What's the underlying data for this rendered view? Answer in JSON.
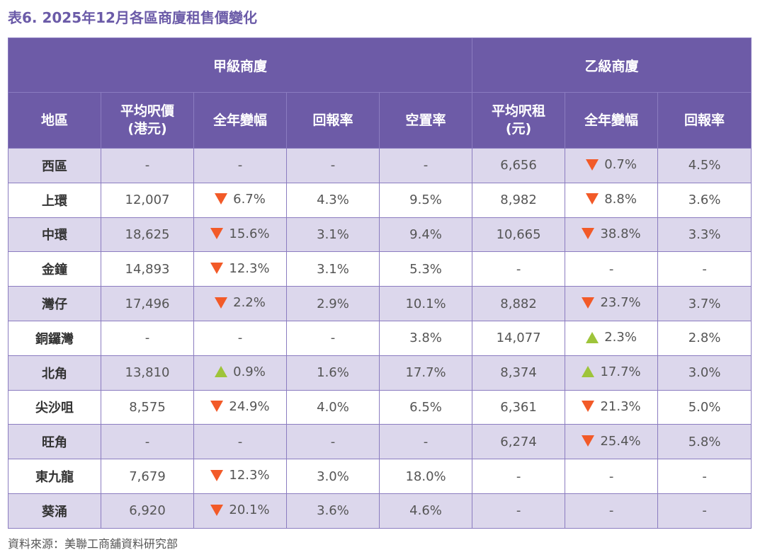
{
  "title": "表6. 2025年12月各區商廈租售價變化",
  "groups": {
    "grade_a": "甲級商廈",
    "grade_b": "乙級商廈"
  },
  "columns": [
    {
      "l1": "地區",
      "l2": ""
    },
    {
      "l1": "平均呎價",
      "l2": "(港元)"
    },
    {
      "l1": "全年變幅",
      "l2": ""
    },
    {
      "l1": "回報率",
      "l2": ""
    },
    {
      "l1": "空置率",
      "l2": ""
    },
    {
      "l1": "平均呎租",
      "l2": "(元)"
    },
    {
      "l1": "全年變幅",
      "l2": ""
    },
    {
      "l1": "回報率",
      "l2": ""
    }
  ],
  "rows": [
    {
      "region": "西區",
      "a_price": "-",
      "a_chg": {
        "dir": "none",
        "text": "-"
      },
      "a_yield": "-",
      "a_vac": "-",
      "b_rent": "6,656",
      "b_chg": {
        "dir": "down",
        "text": "0.7%"
      },
      "b_yield": "4.5%"
    },
    {
      "region": "上環",
      "a_price": "12,007",
      "a_chg": {
        "dir": "down",
        "text": "6.7%"
      },
      "a_yield": "4.3%",
      "a_vac": "9.5%",
      "b_rent": "8,982",
      "b_chg": {
        "dir": "down",
        "text": "8.8%"
      },
      "b_yield": "3.6%"
    },
    {
      "region": "中環",
      "a_price": "18,625",
      "a_chg": {
        "dir": "down",
        "text": "15.6%"
      },
      "a_yield": "3.1%",
      "a_vac": "9.4%",
      "b_rent": "10,665",
      "b_chg": {
        "dir": "down",
        "text": "38.8%"
      },
      "b_yield": "3.3%"
    },
    {
      "region": "金鐘",
      "a_price": "14,893",
      "a_chg": {
        "dir": "down",
        "text": "12.3%"
      },
      "a_yield": "3.1%",
      "a_vac": "5.3%",
      "b_rent": "-",
      "b_chg": {
        "dir": "none",
        "text": "-"
      },
      "b_yield": "-"
    },
    {
      "region": "灣仔",
      "a_price": "17,496",
      "a_chg": {
        "dir": "down",
        "text": "2.2%"
      },
      "a_yield": "2.9%",
      "a_vac": "10.1%",
      "b_rent": "8,882",
      "b_chg": {
        "dir": "down",
        "text": "23.7%"
      },
      "b_yield": "3.7%"
    },
    {
      "region": "銅鑼灣",
      "a_price": "-",
      "a_chg": {
        "dir": "none",
        "text": "-"
      },
      "a_yield": "-",
      "a_vac": "3.8%",
      "b_rent": "14,077",
      "b_chg": {
        "dir": "up",
        "text": "2.3%"
      },
      "b_yield": "2.8%"
    },
    {
      "region": "北角",
      "a_price": "13,810",
      "a_chg": {
        "dir": "up",
        "text": "0.9%"
      },
      "a_yield": "1.6%",
      "a_vac": "17.7%",
      "b_rent": "8,374",
      "b_chg": {
        "dir": "up",
        "text": "17.7%"
      },
      "b_yield": "3.0%"
    },
    {
      "region": "尖沙咀",
      "a_price": "8,575",
      "a_chg": {
        "dir": "down",
        "text": "24.9%"
      },
      "a_yield": "4.0%",
      "a_vac": "6.5%",
      "b_rent": "6,361",
      "b_chg": {
        "dir": "down",
        "text": "21.3%"
      },
      "b_yield": "5.0%"
    },
    {
      "region": "旺角",
      "a_price": "-",
      "a_chg": {
        "dir": "none",
        "text": "-"
      },
      "a_yield": "-",
      "a_vac": "-",
      "b_rent": "6,274",
      "b_chg": {
        "dir": "down",
        "text": "25.4%"
      },
      "b_yield": "5.8%"
    },
    {
      "region": "東九龍",
      "a_price": "7,679",
      "a_chg": {
        "dir": "down",
        "text": "12.3%"
      },
      "a_yield": "3.0%",
      "a_vac": "18.0%",
      "b_rent": "-",
      "b_chg": {
        "dir": "none",
        "text": "-"
      },
      "b_yield": "-"
    },
    {
      "region": "葵涌",
      "a_price": "6,920",
      "a_chg": {
        "dir": "down",
        "text": "20.1%"
      },
      "a_yield": "3.6%",
      "a_vac": "4.6%",
      "b_rent": "-",
      "b_chg": {
        "dir": "none",
        "text": "-"
      },
      "b_yield": "-"
    }
  ],
  "colors": {
    "header_bg": "#6d5ba7",
    "title": "#6b5ba8",
    "stripe": "#dcd7ec",
    "down": "#f25a28",
    "up": "#9ec43a"
  },
  "icons": {
    "down": "down-triangle-icon",
    "up": "up-triangle-icon"
  },
  "source": "資料來源：美聯工商舖資料研究部"
}
